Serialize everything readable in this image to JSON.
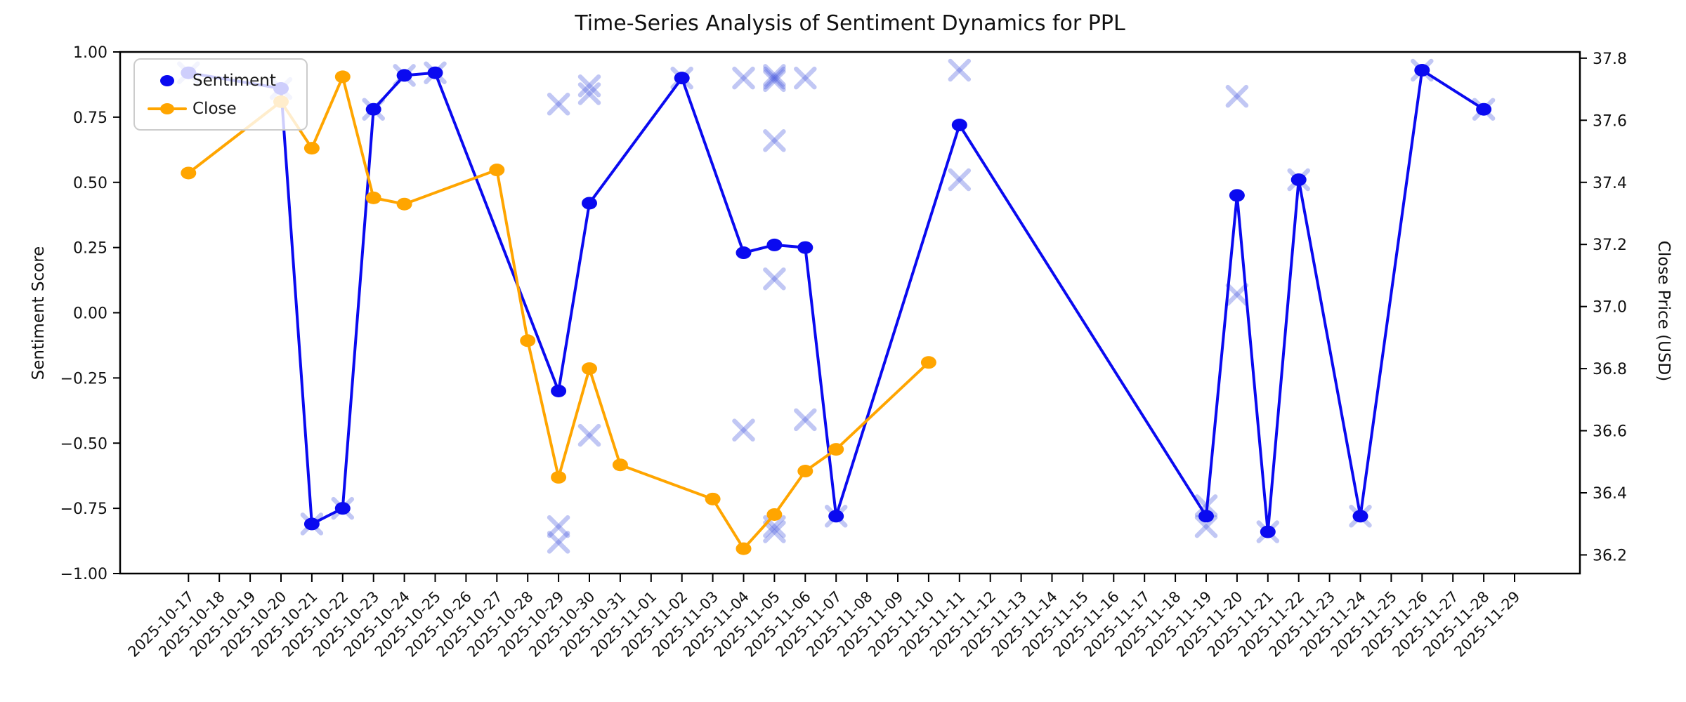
{
  "title": "Time-Series Analysis of Sentiment Dynamics for PPL",
  "y_left": {
    "label": "Sentiment Score",
    "ticks": [
      "1.00",
      "0.75",
      "0.50",
      "0.25",
      "0.00",
      "−0.25",
      "−0.50",
      "−0.75",
      "−1.00"
    ]
  },
  "y_right": {
    "label": "Close Price (USD)",
    "ticks": [
      "37.8",
      "37.6",
      "37.4",
      "37.2",
      "37.0",
      "36.8",
      "36.6",
      "36.4",
      "36.2"
    ]
  },
  "legend": {
    "items": [
      {
        "label": "Sentiment",
        "marker": "dot",
        "color": "#0a0af0"
      },
      {
        "label": "Close",
        "marker": "line-dot",
        "color": "#ffa500"
      }
    ],
    "position": "upper-left"
  },
  "colors": {
    "sentiment_line": "#0a0af0",
    "close_line": "#ffa500",
    "scatter_x": "rgba(74,90,224,0.34)",
    "axis": "#000000",
    "tick_text": "#111111",
    "legend_border": "#cccccc"
  },
  "chart_data": {
    "type": "line",
    "title": "Time-Series Analysis of Sentiment Dynamics for PPL",
    "xlabel": "",
    "ylabel_left": "Sentiment Score",
    "ylabel_right": "Close Price (USD)",
    "x_tick_labels": [
      "2025-10-17",
      "2025-10-18",
      "2025-10-19",
      "2025-10-20",
      "2025-10-21",
      "2025-10-22",
      "2025-10-23",
      "2025-10-24",
      "2025-10-25",
      "2025-10-26",
      "2025-10-27",
      "2025-10-28",
      "2025-10-29",
      "2025-10-30",
      "2025-10-31",
      "2025-11-01",
      "2025-11-02",
      "2025-11-03",
      "2025-11-04",
      "2025-11-05",
      "2025-11-06",
      "2025-11-07",
      "2025-11-08",
      "2025-11-09",
      "2025-11-10",
      "2025-11-11",
      "2025-11-12",
      "2025-11-13",
      "2025-11-14",
      "2025-11-15",
      "2025-11-16",
      "2025-11-17",
      "2025-11-18",
      "2025-11-19",
      "2025-11-20",
      "2025-11-21",
      "2025-11-22",
      "2025-11-23",
      "2025-11-24",
      "2025-11-25",
      "2025-11-26",
      "2025-11-27",
      "2025-11-28",
      "2025-11-29"
    ],
    "ylim_left": [
      -1.0,
      1.0
    ],
    "yticks_left": [
      1.0,
      0.75,
      0.5,
      0.25,
      0.0,
      -0.25,
      -0.5,
      -0.75,
      -1.0
    ],
    "ylim_right": [
      36.14,
      37.82
    ],
    "yticks_right": [
      37.8,
      37.6,
      37.4,
      37.2,
      37.0,
      36.8,
      36.6,
      36.4,
      36.2
    ],
    "grid": false,
    "series": [
      {
        "name": "Sentiment",
        "axis": "left",
        "style": "line-with-dots",
        "points": [
          [
            "2025-10-17",
            0.92
          ],
          [
            "2025-10-20",
            0.86
          ],
          [
            "2025-10-21",
            -0.81
          ],
          [
            "2025-10-22",
            -0.75
          ],
          [
            "2025-10-23",
            0.78
          ],
          [
            "2025-10-24",
            0.91
          ],
          [
            "2025-10-25",
            0.92
          ],
          [
            "2025-10-29",
            -0.3
          ],
          [
            "2025-10-30",
            0.42
          ],
          [
            "2025-11-02",
            0.9
          ],
          [
            "2025-11-04",
            0.23
          ],
          [
            "2025-11-05",
            0.26
          ],
          [
            "2025-11-06",
            0.25
          ],
          [
            "2025-11-07",
            -0.78
          ],
          [
            "2025-11-11",
            0.72
          ],
          [
            "2025-11-19",
            -0.78
          ],
          [
            "2025-11-20",
            0.45
          ],
          [
            "2025-11-21",
            -0.84
          ],
          [
            "2025-11-22",
            0.51
          ],
          [
            "2025-11-24",
            -0.78
          ],
          [
            "2025-11-26",
            0.93
          ],
          [
            "2025-11-28",
            0.78
          ]
        ]
      },
      {
        "name": "Close",
        "axis": "right",
        "style": "line-with-dots",
        "points": [
          [
            "2025-10-17",
            37.43
          ],
          [
            "2025-10-20",
            37.66
          ],
          [
            "2025-10-21",
            37.51
          ],
          [
            "2025-10-22",
            37.74
          ],
          [
            "2025-10-23",
            37.35
          ],
          [
            "2025-10-24",
            37.33
          ],
          [
            "2025-10-27",
            37.44
          ],
          [
            "2025-10-28",
            36.89
          ],
          [
            "2025-10-29",
            36.45
          ],
          [
            "2025-10-30",
            36.8
          ],
          [
            "2025-10-31",
            36.49
          ],
          [
            "2025-11-03",
            36.38
          ],
          [
            "2025-11-04",
            36.22
          ],
          [
            "2025-11-05",
            36.33
          ],
          [
            "2025-11-06",
            36.47
          ],
          [
            "2025-11-07",
            36.54
          ],
          [
            "2025-11-10",
            36.82
          ]
        ]
      },
      {
        "name": "sentiment-readings-scatter",
        "axis": "left",
        "style": "x-marker",
        "points": [
          [
            "2025-10-17",
            0.92
          ],
          [
            "2025-10-20",
            0.86
          ],
          [
            "2025-10-21",
            -0.81
          ],
          [
            "2025-10-22",
            -0.75
          ],
          [
            "2025-10-23",
            0.78
          ],
          [
            "2025-10-24",
            0.91
          ],
          [
            "2025-10-25",
            0.92
          ],
          [
            "2025-10-29",
            0.8
          ],
          [
            "2025-10-29",
            -0.82
          ],
          [
            "2025-10-29",
            -0.88
          ],
          [
            "2025-10-30",
            0.87
          ],
          [
            "2025-10-30",
            0.84
          ],
          [
            "2025-10-30",
            -0.47
          ],
          [
            "2025-11-02",
            0.9
          ],
          [
            "2025-11-04",
            0.9
          ],
          [
            "2025-11-04",
            -0.45
          ],
          [
            "2025-11-05",
            0.91
          ],
          [
            "2025-11-05",
            0.9
          ],
          [
            "2025-11-05",
            0.89
          ],
          [
            "2025-11-05",
            0.66
          ],
          [
            "2025-11-05",
            0.13
          ],
          [
            "2025-11-05",
            -0.82
          ],
          [
            "2025-11-05",
            -0.84
          ],
          [
            "2025-11-06",
            0.9
          ],
          [
            "2025-11-06",
            -0.41
          ],
          [
            "2025-11-07",
            -0.78
          ],
          [
            "2025-11-11",
            0.93
          ],
          [
            "2025-11-11",
            0.51
          ],
          [
            "2025-11-19",
            -0.74
          ],
          [
            "2025-11-19",
            -0.82
          ],
          [
            "2025-11-20",
            0.83
          ],
          [
            "2025-11-20",
            0.07
          ],
          [
            "2025-11-21",
            -0.84
          ],
          [
            "2025-11-22",
            0.51
          ],
          [
            "2025-11-24",
            -0.78
          ],
          [
            "2025-11-26",
            0.93
          ],
          [
            "2025-11-28",
            0.78
          ]
        ]
      }
    ]
  }
}
